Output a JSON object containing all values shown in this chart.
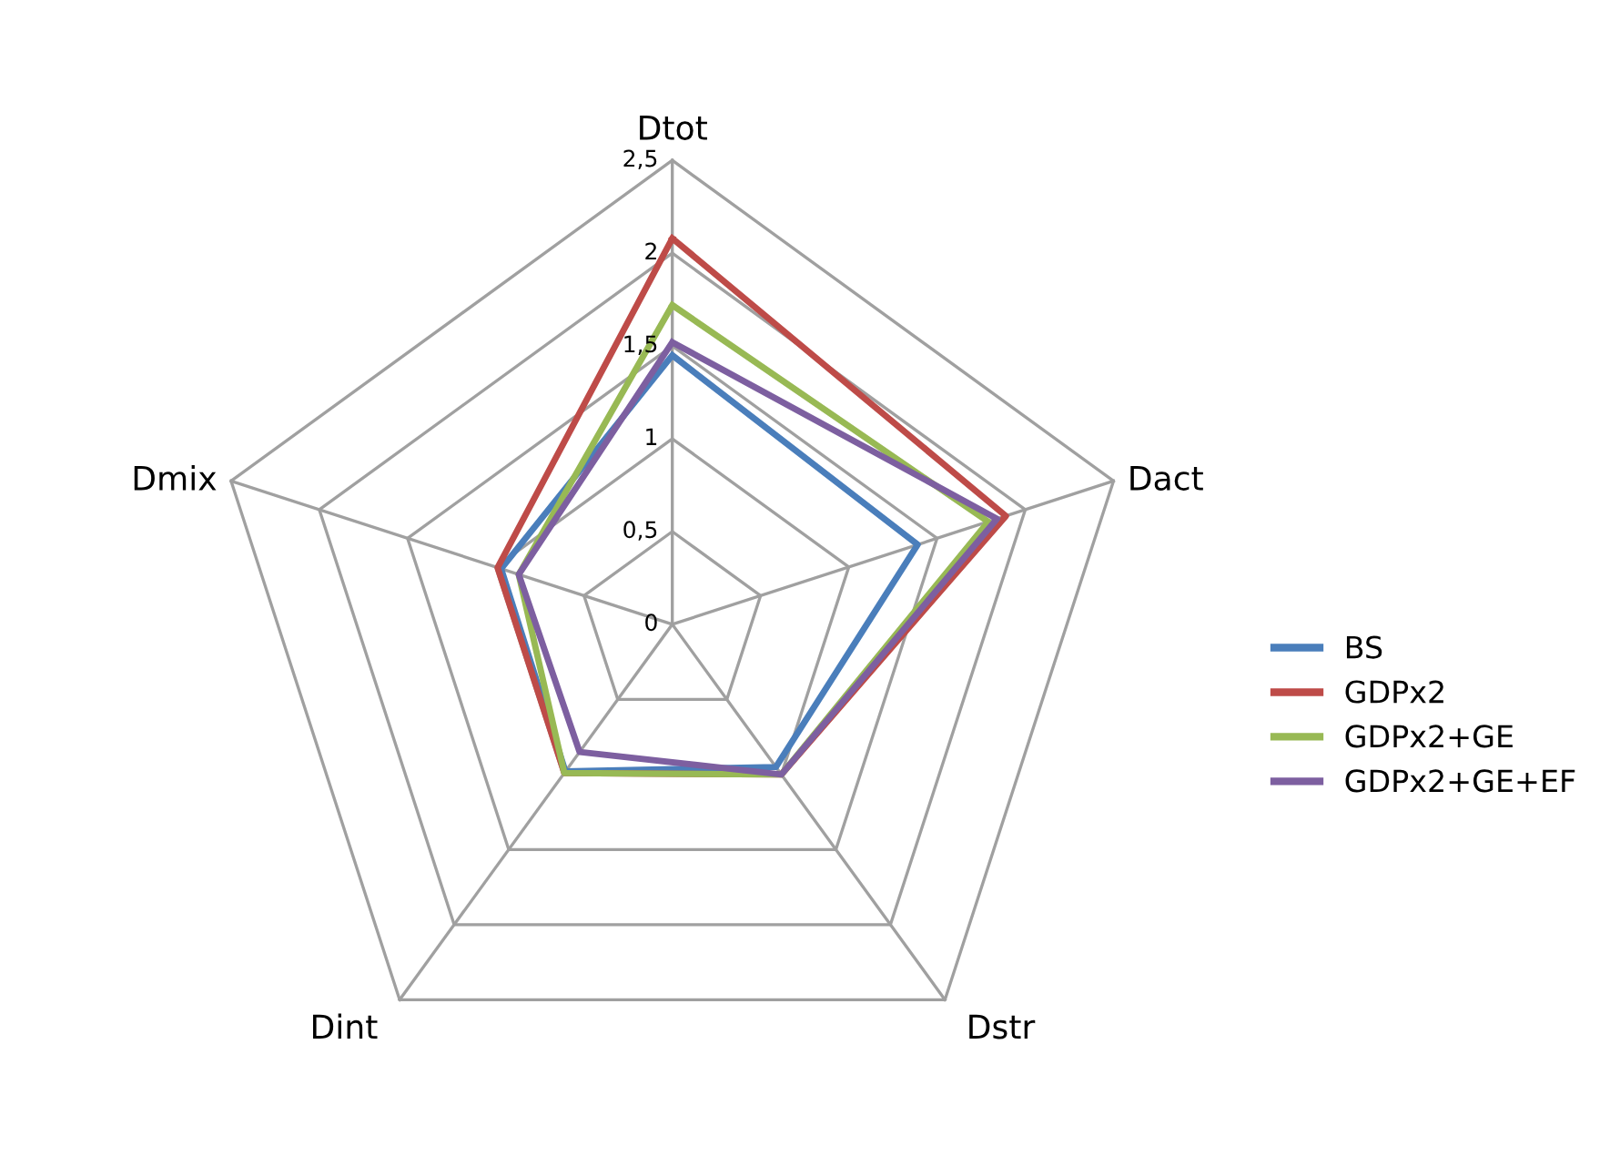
{
  "chart_data": {
    "type": "radar",
    "categories": [
      "Dtot",
      "Dact",
      "Dstr",
      "Dint",
      "Dmix"
    ],
    "ylim": [
      0,
      2.5
    ],
    "yticks": [
      {
        "value": 0,
        "label": "0"
      },
      {
        "value": 0.5,
        "label": "0,5"
      },
      {
        "value": 1,
        "label": "1"
      },
      {
        "value": 1.5,
        "label": "1,5"
      },
      {
        "value": 2,
        "label": "2"
      },
      {
        "value": 2.5,
        "label": "2,5"
      }
    ],
    "legend": "right",
    "grid": true,
    "series": [
      {
        "name": "BS",
        "color": "#4a7ebb",
        "values": [
          1.45,
          1.39,
          0.95,
          0.98,
          0.97
        ]
      },
      {
        "name": "GDPx2",
        "color": "#be4b48",
        "values": [
          2.08,
          1.89,
          1.0,
          0.99,
          0.99
        ]
      },
      {
        "name": "GDPx2+GE",
        "color": "#98b954",
        "values": [
          1.72,
          1.79,
          1.0,
          0.99,
          0.87
        ]
      },
      {
        "name": "GDPx2+GE+EF",
        "color": "#7d5fa0",
        "values": [
          1.52,
          1.84,
          1.0,
          0.85,
          0.87
        ]
      }
    ]
  }
}
